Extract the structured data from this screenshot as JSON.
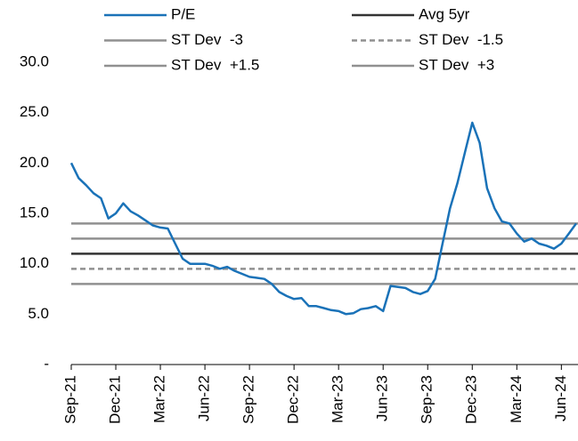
{
  "chart_data": {
    "type": "line",
    "categories": [
      "Sep-21",
      null,
      null,
      null,
      null,
      null,
      "Dec-21",
      null,
      null,
      null,
      null,
      null,
      "Mar-22",
      null,
      null,
      null,
      null,
      null,
      "Jun-22",
      null,
      null,
      null,
      null,
      null,
      "Sep-22",
      null,
      null,
      null,
      null,
      null,
      "Dec-22",
      null,
      null,
      null,
      null,
      null,
      "Mar-23",
      null,
      null,
      null,
      null,
      null,
      "Jun-23",
      null,
      null,
      null,
      null,
      null,
      "Sep-23",
      null,
      null,
      null,
      null,
      null,
      "Dec-23",
      null,
      null,
      null,
      null,
      null,
      "Mar-24",
      null,
      null,
      null,
      null,
      null,
      "Jun-24",
      null,
      null
    ],
    "series": [
      {
        "name": "P/E",
        "color": "#1a72b8",
        "values": [
          20.0,
          18.5,
          17.8,
          17.0,
          16.5,
          14.5,
          15.0,
          16.0,
          15.2,
          14.8,
          14.3,
          13.8,
          13.6,
          13.5,
          12.0,
          10.5,
          10.0,
          10.0,
          10.0,
          9.8,
          9.5,
          9.7,
          9.3,
          9.0,
          8.7,
          8.6,
          8.5,
          8.0,
          7.2,
          6.8,
          6.5,
          6.6,
          5.8,
          5.8,
          5.6,
          5.4,
          5.3,
          5.0,
          5.1,
          5.5,
          5.6,
          5.8,
          5.3,
          7.8,
          7.7,
          7.6,
          7.2,
          7.0,
          7.3,
          8.5,
          12.0,
          15.5,
          18.0,
          21.0,
          24.0,
          22.0,
          17.5,
          15.5,
          14.2,
          14.0,
          13.0,
          12.2,
          12.5,
          12.0,
          11.8,
          11.5,
          12.0,
          13.0,
          14.0
        ]
      },
      {
        "name": "Avg 5yr",
        "color": "#333333",
        "value": 11.0
      },
      {
        "name": "ST Dev  -3",
        "color": "#909090",
        "value": 8.0
      },
      {
        "name": "ST Dev  -1.5",
        "color": "#909090",
        "value": 9.5,
        "dashed": true
      },
      {
        "name": "ST Dev  +1.5",
        "color": "#909090",
        "value": 12.5
      },
      {
        "name": "ST Dev  +3",
        "color": "#909090",
        "value": 14.0
      }
    ],
    "ylim": [
      0,
      30
    ],
    "yticks": [
      {
        "value": 0,
        "label": "-"
      },
      {
        "value": 5,
        "label": "5.0"
      },
      {
        "value": 10,
        "label": "10.0"
      },
      {
        "value": 15,
        "label": "15.0"
      },
      {
        "value": 20,
        "label": "20.0"
      },
      {
        "value": 25,
        "label": "25.0"
      },
      {
        "value": 30,
        "label": "30.0"
      }
    ],
    "legend": "top"
  }
}
